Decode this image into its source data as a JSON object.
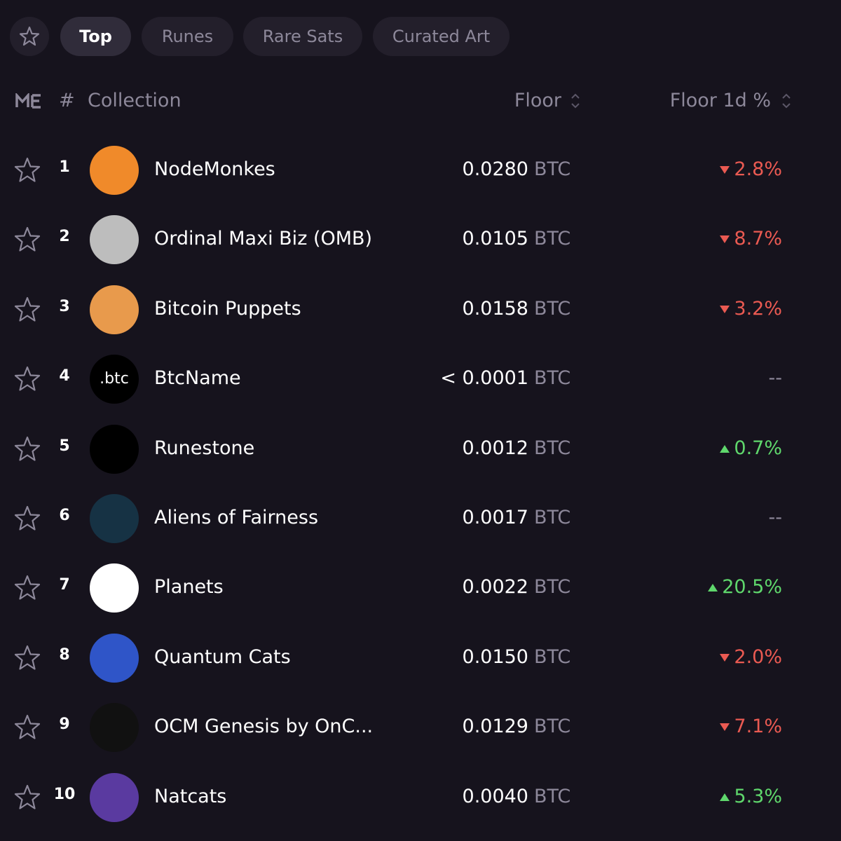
{
  "tabs": [
    "Top",
    "Runes",
    "Rare Sats",
    "Curated Art"
  ],
  "header": {
    "rank": "#",
    "collection": "Collection",
    "floor": "Floor",
    "change": "Floor 1d %"
  },
  "rows": [
    {
      "rank": "1",
      "name": "NodeMonkes",
      "floor": "0.0280",
      "unit": "BTC",
      "change": "2.8%",
      "direction": "down"
    },
    {
      "rank": "2",
      "name": "Ordinal Maxi Biz (OMB)",
      "floor": "0.0105",
      "unit": "BTC",
      "change": "8.7%",
      "direction": "down"
    },
    {
      "rank": "3",
      "name": "Bitcoin Puppets",
      "floor": "0.0158",
      "unit": "BTC",
      "change": "3.2%",
      "direction": "down"
    },
    {
      "rank": "4",
      "name": "BtcName",
      "avatar_text": ".btc",
      "floor": "< 0.0001",
      "unit": "BTC",
      "change": "--",
      "direction": "none"
    },
    {
      "rank": "5",
      "name": "Runestone",
      "floor": "0.0012",
      "unit": "BTC",
      "change": "0.7%",
      "direction": "up"
    },
    {
      "rank": "6",
      "name": "Aliens of Fairness",
      "floor": "0.0017",
      "unit": "BTC",
      "change": "--",
      "direction": "none"
    },
    {
      "rank": "7",
      "name": "Planets",
      "floor": "0.0022",
      "unit": "BTC",
      "change": "20.5%",
      "direction": "up"
    },
    {
      "rank": "8",
      "name": "Quantum Cats",
      "floor": "0.0150",
      "unit": "BTC",
      "change": "2.0%",
      "direction": "down"
    },
    {
      "rank": "9",
      "name": "OCM Genesis by OnC...",
      "floor": "0.0129",
      "unit": "BTC",
      "change": "7.1%",
      "direction": "down"
    },
    {
      "rank": "10",
      "name": "Natcats",
      "floor": "0.0040",
      "unit": "BTC",
      "change": "5.3%",
      "direction": "up"
    }
  ]
}
